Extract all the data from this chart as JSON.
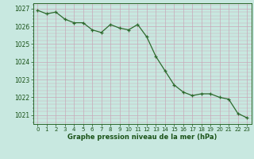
{
  "x": [
    0,
    1,
    2,
    3,
    4,
    5,
    6,
    7,
    8,
    9,
    10,
    11,
    12,
    13,
    14,
    15,
    16,
    17,
    18,
    19,
    20,
    21,
    22,
    23
  ],
  "y": [
    1026.9,
    1026.7,
    1026.8,
    1026.4,
    1026.2,
    1026.2,
    1025.8,
    1025.65,
    1026.1,
    1025.9,
    1025.8,
    1026.1,
    1025.4,
    1024.3,
    1023.5,
    1022.7,
    1022.3,
    1022.1,
    1022.2,
    1022.2,
    1022.0,
    1021.9,
    1021.1,
    1020.85
  ],
  "line_color": "#2d6a2d",
  "marker_color": "#2d6a2d",
  "bg_color": "#c8e8e0",
  "grid_major_color": "#aed4cc",
  "grid_minor_color": "#b8dcd4",
  "xlabel": "Graphe pression niveau de la mer (hPa)",
  "xlabel_color": "#1a5218",
  "tick_color": "#1a5218",
  "spine_color": "#2d6a2d",
  "ylim_bottom": 1020.5,
  "ylim_top": 1027.3,
  "yticks": [
    1021,
    1022,
    1023,
    1024,
    1025,
    1026,
    1027
  ],
  "xticks": [
    0,
    1,
    2,
    3,
    4,
    5,
    6,
    7,
    8,
    9,
    10,
    11,
    12,
    13,
    14,
    15,
    16,
    17,
    18,
    19,
    20,
    21,
    22,
    23
  ]
}
